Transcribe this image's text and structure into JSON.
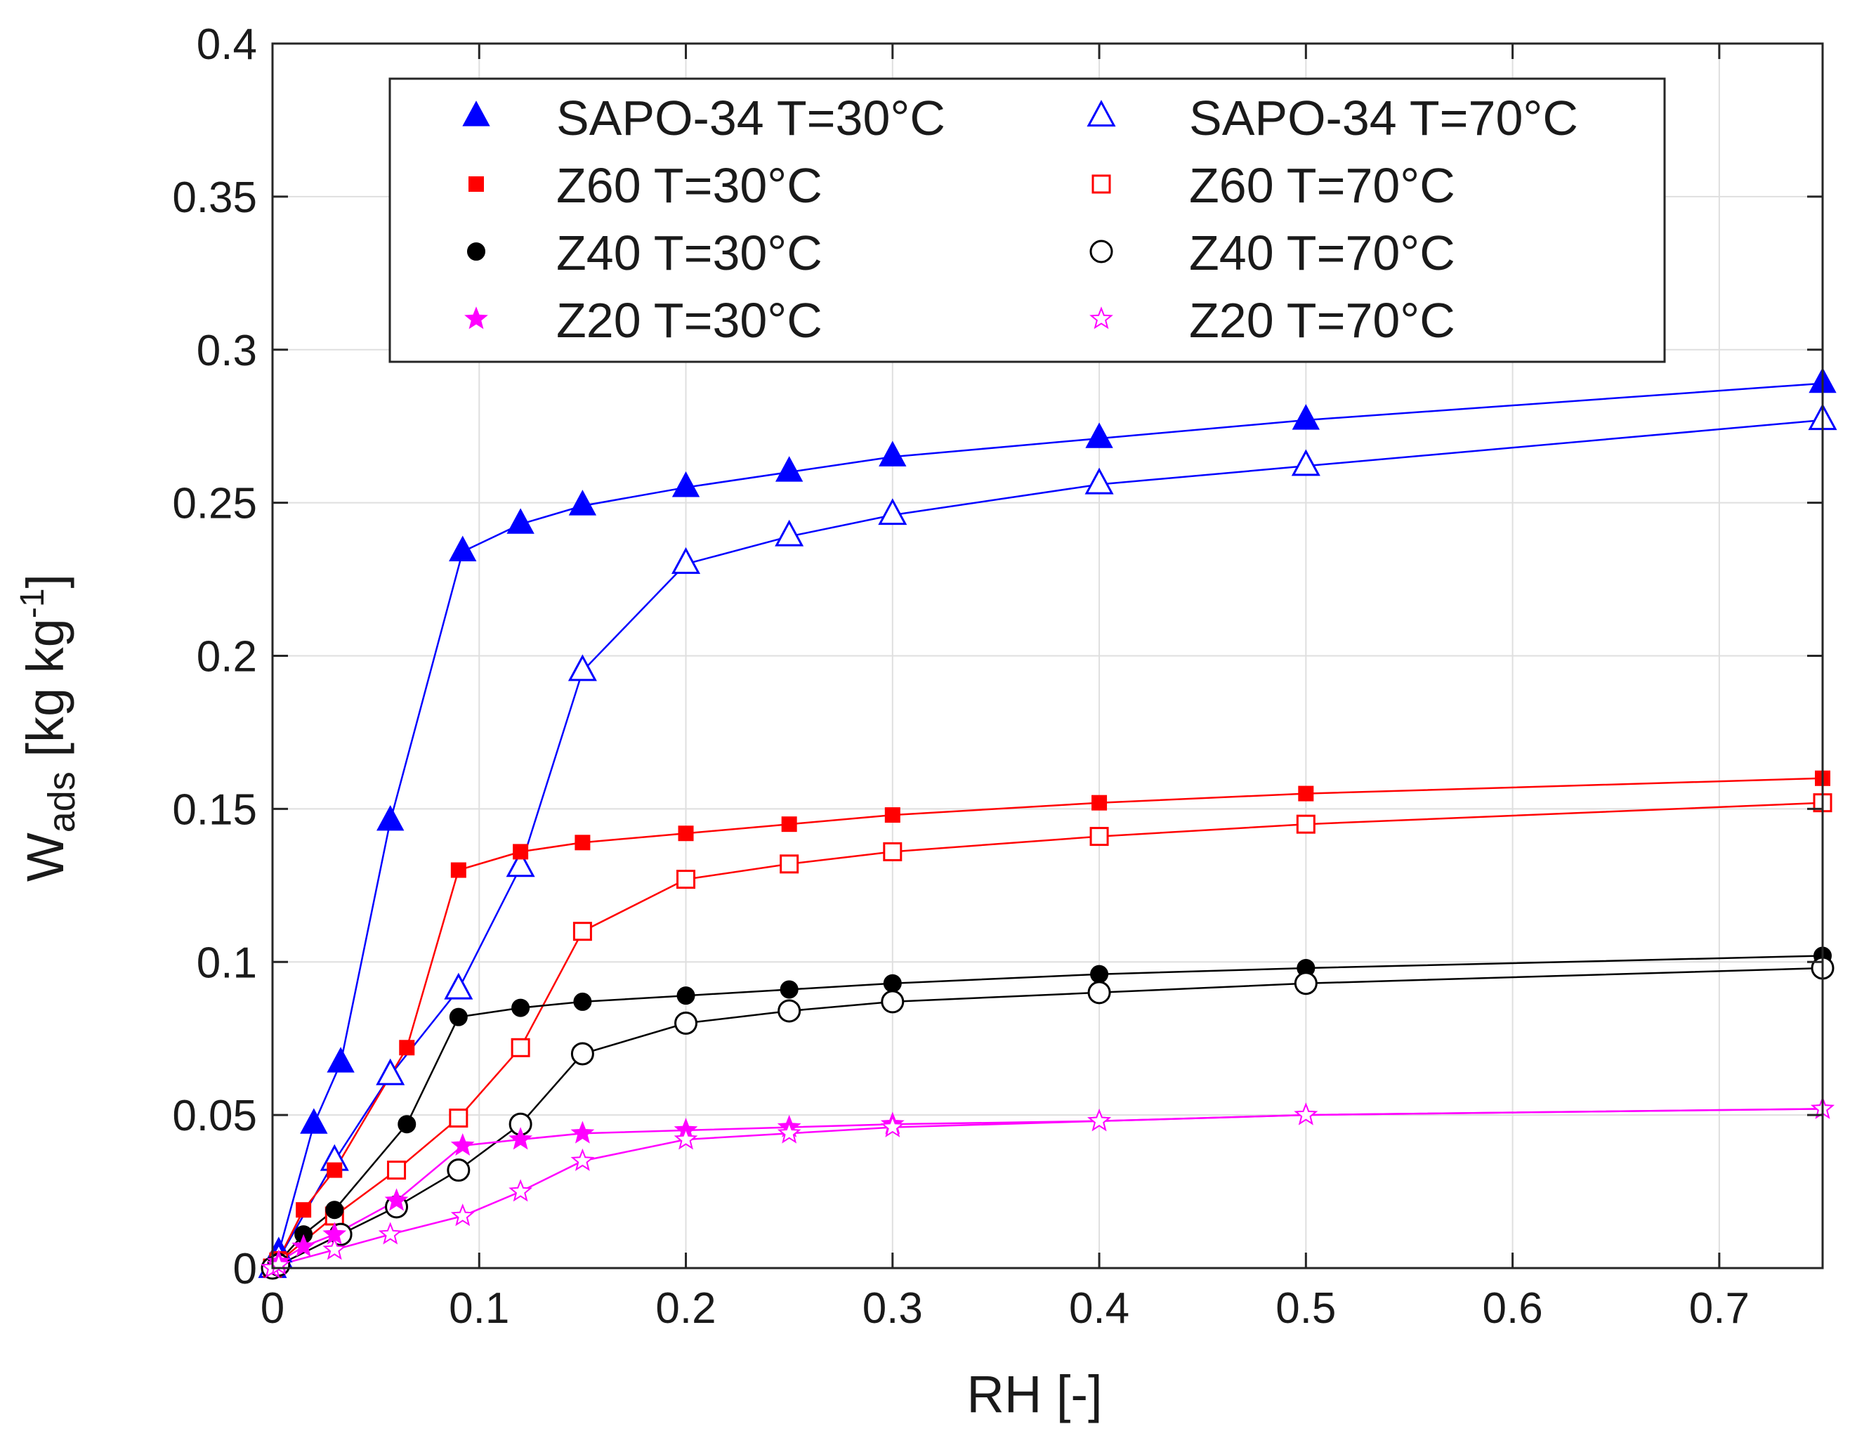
{
  "chart_data": {
    "type": "line",
    "title": "",
    "xlabel": "RH [-]",
    "ylabel_main": "W",
    "ylabel_sub": "ads",
    "ylabel_unit_open": " [kg kg",
    "ylabel_unit_sup": "-1",
    "ylabel_unit_close": "]",
    "xlim": [
      0,
      0.75
    ],
    "ylim": [
      0,
      0.4
    ],
    "xticks": [
      0,
      0.1,
      0.2,
      0.3,
      0.4,
      0.5,
      0.6,
      0.7
    ],
    "xtick_labels": [
      "0",
      "0.1",
      "0.2",
      "0.3",
      "0.4",
      "0.5",
      "0.6",
      "0.7"
    ],
    "yticks": [
      0,
      0.05,
      0.1,
      0.15,
      0.2,
      0.25,
      0.3,
      0.35,
      0.4
    ],
    "ytick_labels": [
      "0",
      "0.05",
      "0.1",
      "0.15",
      "0.2",
      "0.25",
      "0.3",
      "0.35",
      "0.4"
    ],
    "grid": true,
    "legend_position": "top",
    "legend_columns": 2,
    "series": [
      {
        "name": "SAPO-34 T=30°C",
        "color": "#0000ff",
        "marker": "triangle",
        "filled": true,
        "x": [
          0,
          0.003,
          0.02,
          0.033,
          0.057,
          0.092,
          0.12,
          0.15,
          0.2,
          0.25,
          0.3,
          0.4,
          0.5,
          0.75
        ],
        "y": [
          0,
          0.005,
          0.047,
          0.067,
          0.146,
          0.234,
          0.243,
          0.249,
          0.255,
          0.26,
          0.265,
          0.271,
          0.277,
          0.289
        ]
      },
      {
        "name": "SAPO-34 T=70°C",
        "color": "#0000ff",
        "marker": "triangle",
        "filled": false,
        "x": [
          0,
          0.003,
          0.03,
          0.057,
          0.09,
          0.12,
          0.15,
          0.2,
          0.25,
          0.3,
          0.4,
          0.5,
          0.75
        ],
        "y": [
          0,
          0.003,
          0.035,
          0.063,
          0.091,
          0.131,
          0.195,
          0.23,
          0.239,
          0.246,
          0.256,
          0.262,
          0.277
        ]
      },
      {
        "name": "Z60 T=30°C",
        "color": "#ff0000",
        "marker": "square",
        "filled": true,
        "x": [
          0,
          0.003,
          0.015,
          0.03,
          0.065,
          0.09,
          0.12,
          0.15,
          0.2,
          0.25,
          0.3,
          0.4,
          0.5,
          0.75
        ],
        "y": [
          0,
          0.003,
          0.019,
          0.032,
          0.072,
          0.13,
          0.136,
          0.139,
          0.142,
          0.145,
          0.148,
          0.152,
          0.155,
          0.16
        ]
      },
      {
        "name": "Z60 T=70°C",
        "color": "#ff0000",
        "marker": "square",
        "filled": false,
        "x": [
          0,
          0.003,
          0.03,
          0.06,
          0.09,
          0.12,
          0.15,
          0.2,
          0.25,
          0.3,
          0.4,
          0.5,
          0.75
        ],
        "y": [
          0,
          0.002,
          0.017,
          0.032,
          0.049,
          0.072,
          0.11,
          0.127,
          0.132,
          0.136,
          0.141,
          0.145,
          0.152
        ]
      },
      {
        "name": "Z40 T=30°C",
        "color": "#000000",
        "marker": "circle",
        "filled": true,
        "x": [
          0,
          0.003,
          0.015,
          0.03,
          0.065,
          0.09,
          0.12,
          0.15,
          0.2,
          0.25,
          0.3,
          0.4,
          0.5,
          0.75
        ],
        "y": [
          0,
          0.002,
          0.011,
          0.019,
          0.047,
          0.082,
          0.085,
          0.087,
          0.089,
          0.091,
          0.093,
          0.096,
          0.098,
          0.102
        ]
      },
      {
        "name": "Z40 T=70°C",
        "color": "#000000",
        "marker": "circle",
        "filled": false,
        "x": [
          0,
          0.003,
          0.033,
          0.06,
          0.09,
          0.12,
          0.15,
          0.2,
          0.25,
          0.3,
          0.4,
          0.5,
          0.75
        ],
        "y": [
          0,
          0.001,
          0.011,
          0.02,
          0.032,
          0.047,
          0.07,
          0.08,
          0.084,
          0.087,
          0.09,
          0.093,
          0.098
        ]
      },
      {
        "name": "Z20 T=30°C",
        "color": "#ff00ff",
        "marker": "star",
        "filled": true,
        "x": [
          0,
          0.003,
          0.015,
          0.03,
          0.06,
          0.092,
          0.12,
          0.15,
          0.2,
          0.25,
          0.3,
          0.4,
          0.5,
          0.75
        ],
        "y": [
          0,
          0.002,
          0.007,
          0.011,
          0.022,
          0.04,
          0.042,
          0.044,
          0.045,
          0.046,
          0.047,
          0.048,
          0.05,
          0.052
        ]
      },
      {
        "name": "Z20 T=70°C",
        "color": "#ff00ff",
        "marker": "star",
        "filled": false,
        "x": [
          0,
          0.003,
          0.03,
          0.057,
          0.092,
          0.12,
          0.15,
          0.2,
          0.25,
          0.3,
          0.4,
          0.5,
          0.75
        ],
        "y": [
          0,
          0.001,
          0.006,
          0.011,
          0.017,
          0.025,
          0.035,
          0.042,
          0.044,
          0.046,
          0.048,
          0.05,
          0.052
        ]
      }
    ]
  }
}
